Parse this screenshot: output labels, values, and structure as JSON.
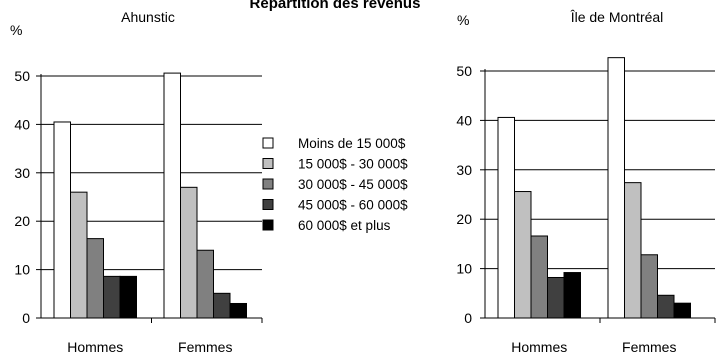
{
  "chart_data": {
    "type": "bar",
    "title": "Répartition des revenus",
    "charts": [
      {
        "subtitle": "Ahunstic",
        "ylabel": "%",
        "ylim": [
          0,
          50
        ],
        "yticks": [
          0,
          10,
          20,
          30,
          40,
          50
        ],
        "categories": [
          "Hommes",
          "Femmes"
        ],
        "series": [
          {
            "name": "Moins de 15 000$",
            "values": [
              40.5,
              50.6
            ]
          },
          {
            "name": "15 000$ - 30 000$",
            "values": [
              26.0,
              27.0
            ]
          },
          {
            "name": "30 000$ - 45 000$",
            "values": [
              16.4,
              14.0
            ]
          },
          {
            "name": "45 000$ - 60 000$",
            "values": [
              8.6,
              5.1
            ]
          },
          {
            "name": "60 000$ et plus",
            "values": [
              8.6,
              3.0
            ]
          }
        ]
      },
      {
        "subtitle": "Île de Montréal",
        "ylabel": "%",
        "ylim": [
          0,
          50
        ],
        "yticks": [
          0,
          10,
          20,
          30,
          40,
          50
        ],
        "categories": [
          "Hommes",
          "Femmes"
        ],
        "series": [
          {
            "name": "Moins de 15 000$",
            "values": [
              40.6,
              52.7
            ]
          },
          {
            "name": "15 000$ - 30 000$",
            "values": [
              25.6,
              27.4
            ]
          },
          {
            "name": "30 000$ - 45 000$",
            "values": [
              16.6,
              12.8
            ]
          },
          {
            "name": "45 000$ - 60 000$",
            "values": [
              8.2,
              4.6
            ]
          },
          {
            "name": "60 000$ et plus",
            "values": [
              9.2,
              3.0
            ]
          }
        ]
      }
    ],
    "legend": {
      "placement": "center",
      "items": [
        "Moins de 15 000$",
        "15 000$ - 30 000$",
        "30 000$ - 45 000$",
        "45 000$ - 60 000$",
        "60 000$ et plus"
      ]
    },
    "series_colors": [
      "#ffffff",
      "#c0c0c0",
      "#808080",
      "#404040",
      "#000000"
    ],
    "grid": true
  }
}
